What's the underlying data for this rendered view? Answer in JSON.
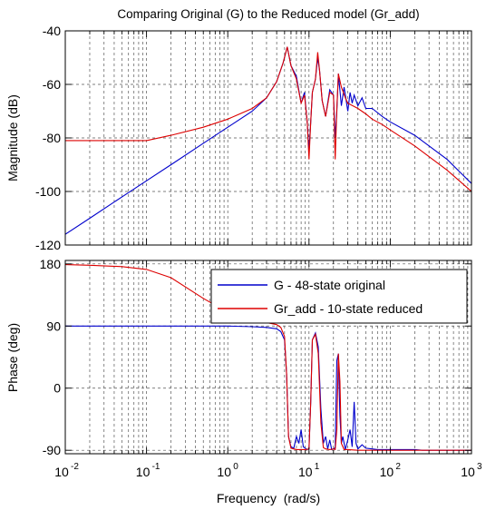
{
  "chart_data": [
    {
      "type": "line",
      "title": "Comparing Original (G) to the Reduced model (Gr_add)",
      "xlabel": "",
      "ylabel": "Magnitude (dB)",
      "xscale": "log",
      "xlim": [
        0.01,
        1000
      ],
      "ylim": [
        -120,
        -40
      ],
      "yticks": [
        -40,
        -60,
        -80,
        -100,
        -120
      ],
      "grid": true,
      "series": [
        {
          "name": "G - 48-state original",
          "color": "#0000cc",
          "x": [
            0.01,
            0.02,
            0.05,
            0.1,
            0.2,
            0.5,
            1,
            2,
            3,
            4,
            4.8,
            5.4,
            6,
            7,
            8,
            8.8,
            9.5,
            10,
            10.5,
            11,
            12,
            12.8,
            13.5,
            14.5,
            16,
            18,
            20,
            21,
            22,
            23,
            25,
            27,
            30,
            32,
            34,
            36,
            40,
            45,
            50,
            60,
            80,
            100,
            200,
            500,
            1000
          ],
          "y": [
            -116,
            -110,
            -102,
            -96,
            -90,
            -82,
            -76,
            -70,
            -65,
            -59,
            -52,
            -46,
            -53,
            -57,
            -67,
            -63,
            -74,
            -85,
            -74,
            -63,
            -58,
            -50,
            -55,
            -66,
            -72,
            -62,
            -64,
            -80,
            -70,
            -56,
            -68,
            -61,
            -70,
            -63,
            -67,
            -64,
            -68,
            -65,
            -69,
            -69,
            -72,
            -74,
            -79,
            -88,
            -97
          ]
        },
        {
          "name": "Gr_add - 10-state reduced",
          "color": "#dd0000",
          "x": [
            0.01,
            0.02,
            0.05,
            0.1,
            0.2,
            0.5,
            1,
            2,
            3,
            4,
            4.8,
            5.4,
            6,
            7,
            8,
            8.8,
            9.5,
            10,
            10.5,
            11,
            12,
            12.8,
            13.5,
            14.5,
            16,
            18,
            20,
            21,
            22,
            23,
            25,
            28,
            30,
            40,
            50,
            60,
            80,
            100,
            200,
            500,
            1000
          ],
          "y": [
            -81,
            -81,
            -81,
            -81,
            -79,
            -76,
            -73,
            -69,
            -65,
            -59,
            -52,
            -46,
            -53,
            -58,
            -67,
            -64,
            -74,
            -88,
            -74,
            -63,
            -58,
            -48,
            -55,
            -66,
            -72,
            -63,
            -64,
            -88,
            -69,
            -56,
            -61,
            -65,
            -67,
            -69,
            -71,
            -73,
            -75,
            -77,
            -83,
            -92,
            -100
          ]
        }
      ]
    },
    {
      "type": "line",
      "title": "",
      "xlabel": "Frequency  (rad/s)",
      "ylabel": "Phase (deg)",
      "xscale": "log",
      "xlim": [
        0.01,
        1000
      ],
      "ylim": [
        -95,
        185
      ],
      "yticks": [
        180,
        90,
        0,
        -90
      ],
      "xticks": [
        "10",
        "10",
        "10",
        "10",
        "10",
        "10"
      ],
      "xtick_exponents": [
        "-2",
        "-1",
        "0",
        "1",
        "2",
        "3"
      ],
      "grid": true,
      "legend": "top-right",
      "series": [
        {
          "name": "G - 48-state original",
          "color": "#0000cc",
          "x": [
            0.01,
            0.1,
            1,
            2,
            3,
            4,
            4.5,
            5,
            5.3,
            5.6,
            6,
            6.5,
            7,
            7.5,
            8,
            8.5,
            9,
            9.5,
            10,
            10.5,
            11,
            12,
            13,
            14,
            15,
            16,
            17,
            18,
            19,
            20,
            21,
            22,
            23,
            24,
            25,
            26,
            28,
            30,
            32,
            34,
            36,
            38,
            40,
            45,
            50,
            60,
            70,
            100,
            150,
            200,
            250,
            300,
            1000
          ],
          "y": [
            90,
            90,
            90,
            89,
            88,
            86,
            82,
            70,
            20,
            -70,
            -85,
            -87,
            -70,
            -80,
            -60,
            -85,
            -87,
            -89,
            -88,
            -20,
            70,
            80,
            60,
            -30,
            -80,
            -70,
            -88,
            -75,
            -89,
            -88,
            -86,
            40,
            50,
            -40,
            -80,
            -70,
            -89,
            -75,
            -60,
            -85,
            -20,
            -80,
            -88,
            -82,
            -87,
            -88,
            -89,
            -89,
            -89,
            -89,
            -90,
            -90,
            -90
          ]
        },
        {
          "name": "Gr_add - 10-state reduced",
          "color": "#dd0000",
          "x": [
            0.01,
            0.02,
            0.05,
            0.1,
            0.2,
            0.5,
            1,
            2,
            3,
            4,
            4.5,
            5,
            5.3,
            5.6,
            6,
            7,
            8,
            9,
            10,
            10.5,
            11,
            12,
            13,
            14,
            15,
            16,
            18,
            20,
            21,
            22,
            23,
            24,
            25,
            27,
            30,
            40,
            50,
            100,
            1000
          ],
          "y": [
            179,
            178,
            176,
            172,
            160,
            130,
            110,
            100,
            95,
            92,
            88,
            75,
            20,
            -70,
            -87,
            -89,
            -89,
            -89,
            -88,
            -20,
            70,
            78,
            50,
            -50,
            -86,
            -88,
            -89,
            -88,
            -89,
            -60,
            50,
            10,
            -80,
            -89,
            -89,
            -90,
            -90,
            -90,
            -90
          ]
        }
      ]
    }
  ]
}
